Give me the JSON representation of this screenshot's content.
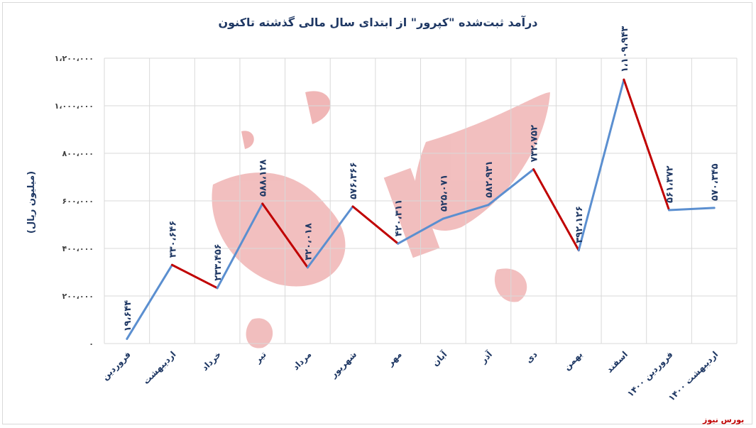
{
  "chart_data": {
    "type": "line",
    "title": "درآمد ثبت‌شده \"کپرور\" از ابتدای سال مالی گذشته تاکنون",
    "xlabel": "",
    "ylabel": "(میلیون ریال)",
    "categories": [
      "فروردین",
      "اردیبهشت",
      "خرداد",
      "تیر",
      "مرداد",
      "شهریور",
      "مهر",
      "آبان",
      "آذر",
      "دی",
      "بهمن",
      "اسفند",
      "فروردین ۱۴۰۰",
      "اردیبهشت ۱۴۰۰"
    ],
    "values": [
      19644,
      330646,
      233456,
      588128,
      320018,
      576366,
      420311,
      525071,
      582931,
      732752,
      392126,
      1109943,
      561372,
      570345
    ],
    "data_labels": [
      "۱۹،۶۴۴",
      "۳۳۰،۶۴۶",
      "۲۳۳،۴۵۶",
      "۵۸۸،۱۲۸",
      "۳۲۰،۰۱۸",
      "۵۷۶،۳۶۶",
      "۴۲۰،۳۱۱",
      "۵۲۵،۰۷۱",
      "۵۸۲،۹۳۱",
      "۷۳۲،۷۵۲",
      "۳۹۲،۱۲۶",
      "۱،۱۰۹،۹۴۳",
      "۵۶۱،۳۷۲",
      "۵۷۰،۳۴۵"
    ],
    "ylim": [
      0,
      1200000
    ],
    "yticks": [
      0,
      200000,
      400000,
      600000,
      800000,
      1000000,
      1200000
    ],
    "ytick_labels": [
      "۰",
      "۲۰۰،۰۰۰",
      "۴۰۰،۰۰۰",
      "۶۰۰،۰۰۰",
      "۸۰۰،۰۰۰",
      "۱،۰۰۰،۰۰۰",
      "۱،۲۰۰،۰۰۰"
    ],
    "grid": true,
    "colors": {
      "increase": "#5b8fd0",
      "decrease": "#c00000",
      "grid": "#d9d9d9",
      "text": "#1f3864"
    }
  },
  "watermark": "بورس نیوز"
}
